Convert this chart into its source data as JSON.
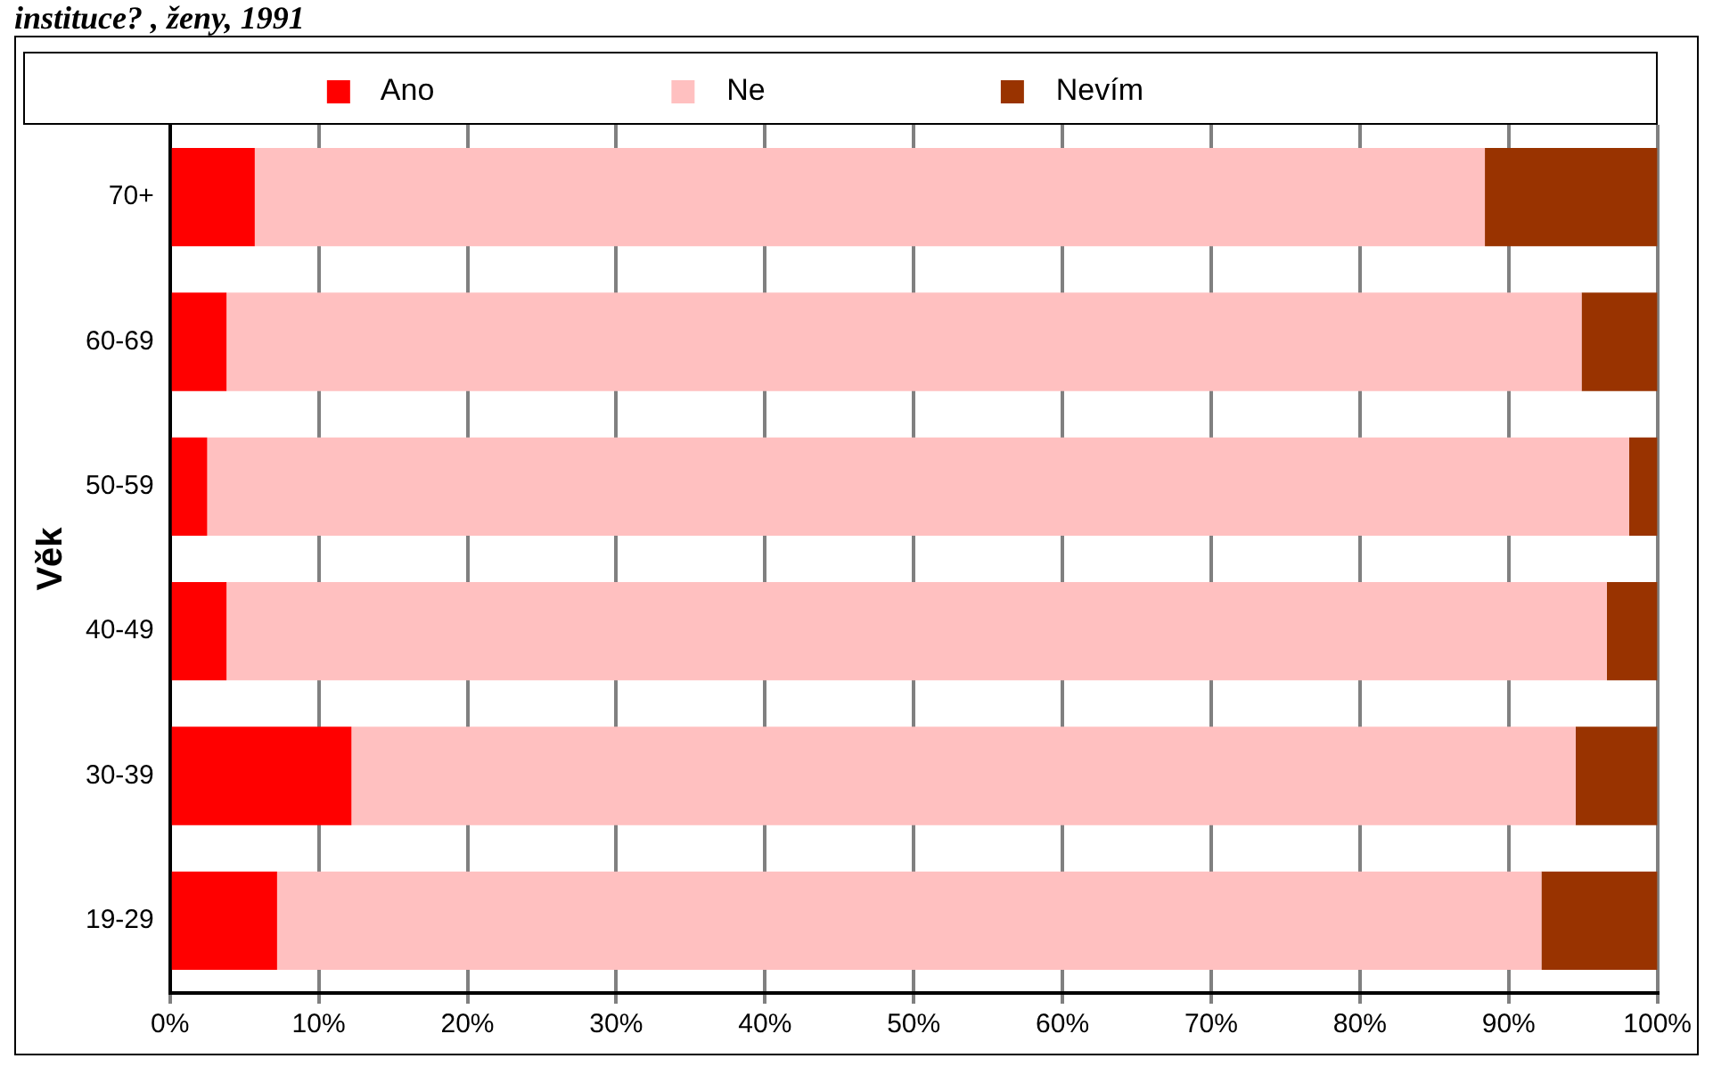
{
  "chart_data": {
    "type": "bar",
    "orientation": "horizontal",
    "stacked": true,
    "title": "instituce? , ženy, 1991",
    "ylabel": "Věk",
    "categories": [
      "70+",
      "60-69",
      "50-59",
      "40-49",
      "30-39",
      "19-29"
    ],
    "series": [
      {
        "name": "Ano",
        "color": "#ff0000",
        "values": [
          5.7,
          3.8,
          2.5,
          3.8,
          12.2,
          7.2
        ]
      },
      {
        "name": "Ne",
        "color": "#ffc0c0",
        "values": [
          82.7,
          91.1,
          95.6,
          92.8,
          82.3,
          85.0
        ]
      },
      {
        "name": "Nevím",
        "color": "#993300",
        "values": [
          11.6,
          5.1,
          1.9,
          3.4,
          5.5,
          7.8
        ]
      }
    ],
    "xlim": [
      0,
      100
    ],
    "xticks": [
      {
        "value": 0,
        "label": "0%"
      },
      {
        "value": 10,
        "label": "10%"
      },
      {
        "value": 20,
        "label": "20%"
      },
      {
        "value": 30,
        "label": "30%"
      },
      {
        "value": 40,
        "label": "40%"
      },
      {
        "value": 50,
        "label": "50%"
      },
      {
        "value": 60,
        "label": "60%"
      },
      {
        "value": 70,
        "label": "70%"
      },
      {
        "value": 80,
        "label": "80%"
      },
      {
        "value": 90,
        "label": "90%"
      },
      {
        "value": 100,
        "label": "100%"
      }
    ],
    "grid": "x",
    "legend": "top"
  }
}
